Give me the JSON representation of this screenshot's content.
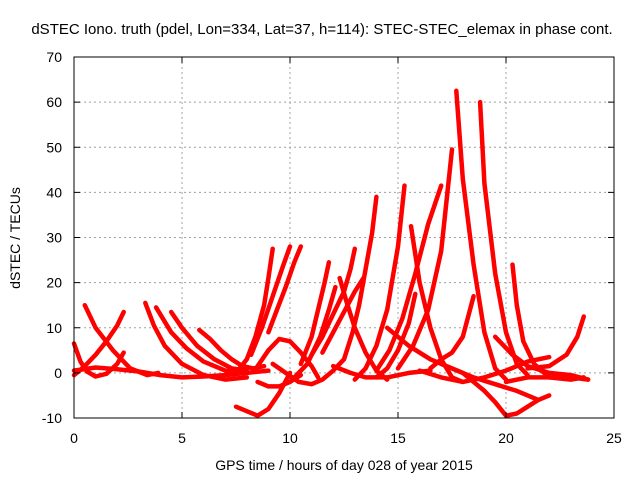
{
  "chart_data": {
    "type": "scatter",
    "title": "dSTEC Iono. truth (pdel, Lon=334, Lat=37, h=114): STEC-STEC_elemax in phase cont.",
    "xlabel": "GPS time / hours of day 028 of year 2015",
    "ylabel": "dSTEC  / TECUs",
    "xlim": [
      0,
      25
    ],
    "ylim": [
      -10,
      70
    ],
    "xticks": [
      0,
      5,
      10,
      15,
      20,
      25
    ],
    "yticks": [
      -10,
      0,
      10,
      20,
      30,
      40,
      50,
      60,
      70
    ],
    "grid": true,
    "marker_color": "#ff0000",
    "marker": "+",
    "series": [
      {
        "x": [
          0.0,
          0.3,
          0.6,
          1.0,
          1.5,
          2.0,
          2.3
        ],
        "y": [
          6.5,
          2.5,
          0.3,
          -0.8,
          -0.2,
          2.0,
          4.5
        ]
      },
      {
        "x": [
          0.0,
          1.0,
          2.0,
          3.0,
          4.0,
          5.0,
          6.0,
          7.0,
          8.0
        ],
        "y": [
          0.5,
          1.2,
          0.8,
          0.3,
          -0.5,
          -1.0,
          -0.8,
          -0.5,
          0.0
        ]
      },
      {
        "x": [
          0.5,
          1.0,
          1.8,
          2.6,
          3.4,
          3.9
        ],
        "y": [
          15.0,
          10.0,
          5.0,
          1.0,
          -0.5,
          0.0
        ]
      },
      {
        "x": [
          0.0,
          0.5,
          1.0,
          1.5,
          2.0,
          2.3
        ],
        "y": [
          -0.5,
          1.5,
          4.0,
          7.0,
          10.5,
          13.5
        ]
      },
      {
        "x": [
          3.3,
          3.7,
          4.2,
          5.0,
          6.0,
          7.0,
          8.0
        ],
        "y": [
          15.5,
          10.5,
          6.0,
          2.0,
          -0.5,
          -1.5,
          -1.0
        ]
      },
      {
        "x": [
          3.8,
          4.5,
          5.2,
          6.0,
          7.0,
          8.0,
          9.0
        ],
        "y": [
          14.5,
          9.0,
          5.5,
          2.5,
          0.5,
          0.0,
          0.5
        ]
      },
      {
        "x": [
          4.5,
          5.0,
          5.7,
          6.5,
          7.3,
          8.0
        ],
        "y": [
          13.5,
          10.0,
          6.0,
          3.0,
          1.0,
          0.5
        ]
      },
      {
        "x": [
          5.8,
          6.3,
          6.8,
          7.3,
          7.8,
          8.3,
          8.8
        ],
        "y": [
          9.5,
          7.5,
          5.0,
          3.0,
          1.5,
          1.0,
          1.5
        ]
      },
      {
        "x": [
          7.5,
          8.0,
          8.5,
          9.0,
          9.5,
          10.0
        ],
        "y": [
          -7.5,
          -8.5,
          -9.5,
          -8.0,
          -4.5,
          0.0
        ]
      },
      {
        "x": [
          7.5,
          8.0,
          8.4,
          8.8,
          9.0,
          9.2
        ],
        "y": [
          0.0,
          3.0,
          8.0,
          15.0,
          21.0,
          27.5
        ]
      },
      {
        "x": [
          8.2,
          8.7,
          9.2,
          9.7,
          10.0
        ],
        "y": [
          4.0,
          10.0,
          17.0,
          24.0,
          28.0
        ]
      },
      {
        "x": [
          9.0,
          9.4,
          9.8,
          10.2,
          10.5
        ],
        "y": [
          9.0,
          14.0,
          19.0,
          24.5,
          28.0
        ]
      },
      {
        "x": [
          8.5,
          9.0,
          9.5,
          10.0,
          10.5
        ],
        "y": [
          -2.0,
          -3.0,
          -3.0,
          -2.0,
          -0.5
        ]
      },
      {
        "x": [
          8.5,
          9.0,
          9.5,
          10.0,
          10.5,
          11.0,
          11.3
        ],
        "y": [
          1.5,
          5.0,
          7.5,
          7.0,
          4.5,
          1.5,
          -1.0
        ]
      },
      {
        "x": [
          9.2,
          9.8,
          10.4,
          11.0,
          11.5,
          12.0,
          12.5
        ],
        "y": [
          2.0,
          0.0,
          -2.0,
          -2.5,
          -1.5,
          0.5,
          3.0
        ]
      },
      {
        "x": [
          10.5,
          11.0,
          11.3,
          11.6,
          11.8
        ],
        "y": [
          2.0,
          8.0,
          14.0,
          20.0,
          24.5
        ]
      },
      {
        "x": [
          10.0,
          10.8,
          11.4,
          11.8,
          12.1
        ],
        "y": [
          -2.0,
          2.0,
          8.0,
          14.0,
          19.0
        ]
      },
      {
        "x": [
          11.0,
          11.5,
          12.0,
          12.5,
          12.8,
          13.0
        ],
        "y": [
          4.0,
          8.0,
          13.0,
          18.0,
          23.0,
          27.5
        ]
      },
      {
        "x": [
          11.5,
          12.0,
          12.5,
          13.0,
          13.4
        ],
        "y": [
          4.5,
          9.0,
          13.5,
          18.0,
          21.0
        ]
      },
      {
        "x": [
          12.3,
          12.6,
          13.0,
          13.5,
          14.0,
          14.5
        ],
        "y": [
          21.0,
          16.0,
          10.0,
          4.5,
          0.5,
          -1.5
        ]
      },
      {
        "x": [
          12.5,
          12.9,
          13.2,
          13.5,
          13.8,
          14.0
        ],
        "y": [
          3.0,
          9.0,
          15.0,
          23.0,
          31.0,
          39.0
        ]
      },
      {
        "x": [
          13.0,
          13.5,
          14.0,
          14.5,
          15.0,
          15.3
        ],
        "y": [
          -1.5,
          1.0,
          6.0,
          14.0,
          28.0,
          41.5
        ]
      },
      {
        "x": [
          12.0,
          12.8,
          13.5,
          14.5,
          15.5,
          16.5
        ],
        "y": [
          1.5,
          0.0,
          -1.0,
          -1.0,
          0.0,
          0.5
        ]
      },
      {
        "x": [
          14.0,
          14.5,
          15.0,
          15.5,
          15.8
        ],
        "y": [
          -1.0,
          1.0,
          5.0,
          11.0,
          17.5
        ]
      },
      {
        "x": [
          14.0,
          14.6,
          15.2,
          15.8,
          16.4,
          17.0
        ],
        "y": [
          0.5,
          5.0,
          12.0,
          22.0,
          33.0,
          41.5
        ]
      },
      {
        "x": [
          15.0,
          15.7,
          16.4,
          17.0,
          17.5
        ],
        "y": [
          1.0,
          6.0,
          14.0,
          27.0,
          49.5
        ]
      },
      {
        "x": [
          15.6,
          16.0,
          16.5,
          17.0,
          17.5,
          18.0
        ],
        "y": [
          32.5,
          20.0,
          10.0,
          3.0,
          -1.0,
          -2.0
        ]
      },
      {
        "x": [
          16.5,
          17.0,
          17.5,
          18.0,
          18.5
        ],
        "y": [
          1.0,
          3.0,
          4.5,
          8.0,
          17.0
        ]
      },
      {
        "x": [
          17.7,
          18.0,
          18.5,
          19.0,
          19.5,
          20.0
        ],
        "y": [
          62.5,
          43.0,
          24.0,
          9.0,
          1.0,
          -1.5
        ]
      },
      {
        "x": [
          16.0,
          17.0,
          18.0,
          19.0,
          20.0,
          21.0,
          22.0
        ],
        "y": [
          0.5,
          -1.0,
          -2.0,
          -1.0,
          0.5,
          2.5,
          3.5
        ]
      },
      {
        "x": [
          18.8,
          19.0,
          19.5,
          20.0,
          20.5,
          21.0
        ],
        "y": [
          60.0,
          42.0,
          22.0,
          9.0,
          2.0,
          -0.5
        ]
      },
      {
        "x": [
          17.0,
          18.0,
          19.0,
          19.5,
          20.0,
          20.5,
          21.0,
          21.5,
          22.0
        ],
        "y": [
          2.0,
          0.0,
          -4.0,
          -6.5,
          -9.5,
          -9.0,
          -7.5,
          -6.0,
          -5.0
        ]
      },
      {
        "x": [
          14.5,
          15.5,
          16.5,
          17.5,
          18.5,
          19.5,
          20.5,
          21.5
        ],
        "y": [
          10.0,
          6.0,
          3.0,
          1.0,
          -1.0,
          -2.5,
          -4.0,
          -6.0
        ]
      },
      {
        "x": [
          20.3,
          20.5,
          20.8,
          21.3,
          22.0,
          23.0,
          23.6
        ],
        "y": [
          24.0,
          15.0,
          7.0,
          2.0,
          -1.0,
          -1.5,
          -1.0
        ]
      },
      {
        "x": [
          19.5,
          20.3,
          21.0,
          22.0,
          23.0,
          23.8
        ],
        "y": [
          8.0,
          4.0,
          1.5,
          0.0,
          -0.5,
          -1.5
        ]
      },
      {
        "x": [
          21.0,
          22.0,
          22.8,
          23.3,
          23.6
        ],
        "y": [
          1.0,
          1.5,
          4.0,
          8.0,
          12.5
        ]
      },
      {
        "x": [
          20.0,
          21.0,
          22.0,
          23.0,
          23.8
        ],
        "y": [
          -2.0,
          -1.0,
          -1.0,
          -1.0,
          -1.5
        ]
      }
    ]
  }
}
